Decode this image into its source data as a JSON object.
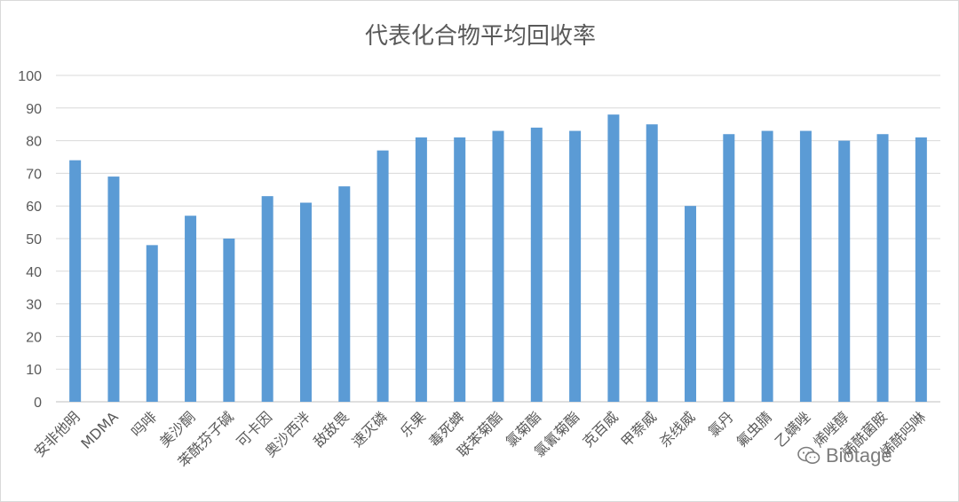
{
  "chart_data": {
    "type": "bar",
    "title": "代表化合物平均回收率",
    "xlabel": "",
    "ylabel": "",
    "ylim": [
      0,
      100
    ],
    "yticks": [
      0,
      10,
      20,
      30,
      40,
      50,
      60,
      70,
      80,
      90,
      100
    ],
    "grid": true,
    "legend": "none",
    "bar_color": "#5b9bd5",
    "categories": [
      "安非他明",
      "MDMA",
      "吗啡",
      "美沙酮",
      "苯酰芬子碱",
      "可卡因",
      "奥沙西泮",
      "敌敌畏",
      "速灭磷",
      "乐果",
      "毒死蜱",
      "联苯菊酯",
      "氯菊酯",
      "氯氰菊酯",
      "克百威",
      "甲萘威",
      "杀线威",
      "氯丹",
      "氟虫腈",
      "乙螨唑",
      "烯唑醇",
      "烯酰菌胺",
      "烯酰吗啉"
    ],
    "values": [
      74,
      69,
      48,
      57,
      50,
      63,
      61,
      66,
      77,
      81,
      81,
      83,
      84,
      83,
      88,
      85,
      60,
      82,
      83,
      83,
      80,
      82,
      81
    ]
  },
  "watermark": {
    "text": "Biotage",
    "icon": "wechat-icon"
  }
}
